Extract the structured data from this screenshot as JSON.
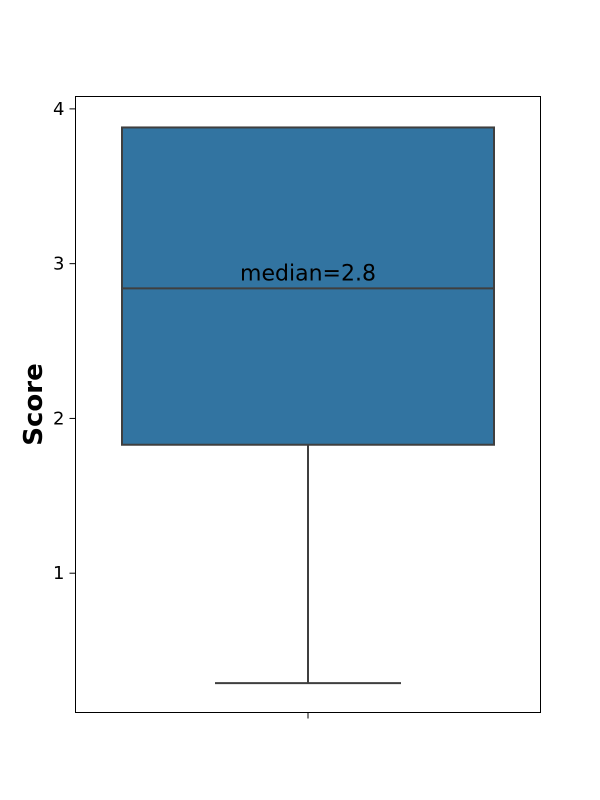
{
  "chart_data": {
    "type": "box",
    "title": "",
    "xlabel": "",
    "ylabel": "Score",
    "ylim": [
      0.1,
      4.08
    ],
    "y_ticks": [
      1,
      2,
      3,
      4
    ],
    "x_ticks": [
      ""
    ],
    "grid": false,
    "legend": "none",
    "series": [
      {
        "whisker_low": 0.29,
        "q1": 1.83,
        "median": 2.84,
        "q3": 3.88,
        "whisker_high": 3.88
      }
    ],
    "annotations": [
      {
        "text": "median=2.8",
        "y": 2.84
      }
    ],
    "colors": {
      "box_fill": "#3274a1",
      "line": "#3f3f3f",
      "axis": "#000000"
    }
  }
}
